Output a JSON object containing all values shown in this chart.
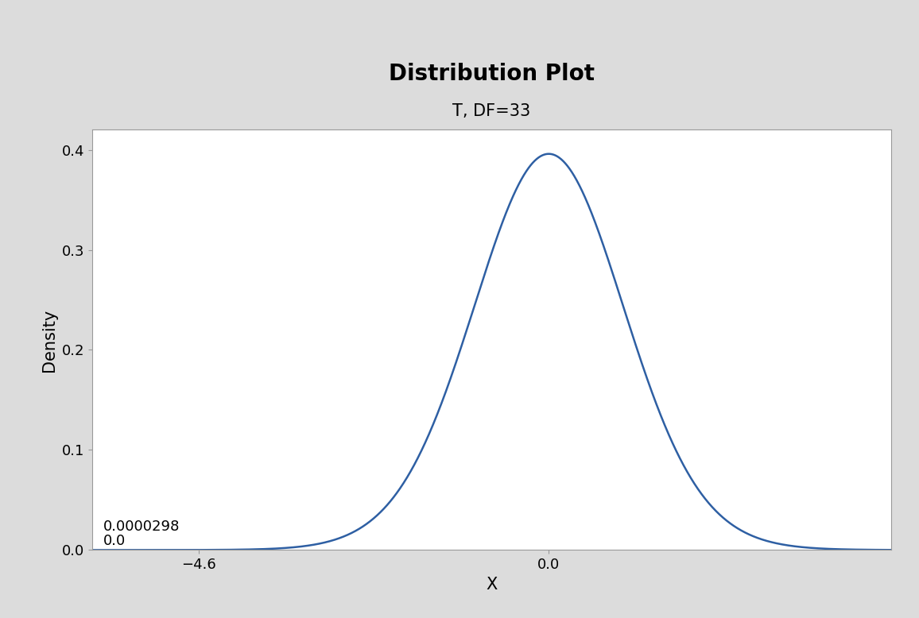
{
  "title": "Distribution Plot",
  "subtitle": "T, DF=33",
  "xlabel": "X",
  "ylabel": "Density",
  "df": 33,
  "t_value": -4.6,
  "p_value": 2.98e-05,
  "x_ticks": [
    -4.6,
    0
  ],
  "y_ticks": [
    0.0,
    0.1,
    0.2,
    0.3,
    0.4
  ],
  "x_min": -6.0,
  "x_max": 4.5,
  "y_min": 0.0,
  "y_max": 0.42,
  "line_color": "#2E5FA3",
  "background_color": "#DCDCDC",
  "plot_background": "#FFFFFF",
  "title_fontsize": 20,
  "subtitle_fontsize": 15,
  "label_fontsize": 15,
  "tick_fontsize": 13,
  "annotation_text_1": "0.0000298",
  "annotation_text_2": "0.0",
  "line_width": 1.8,
  "spine_color": "#999999"
}
